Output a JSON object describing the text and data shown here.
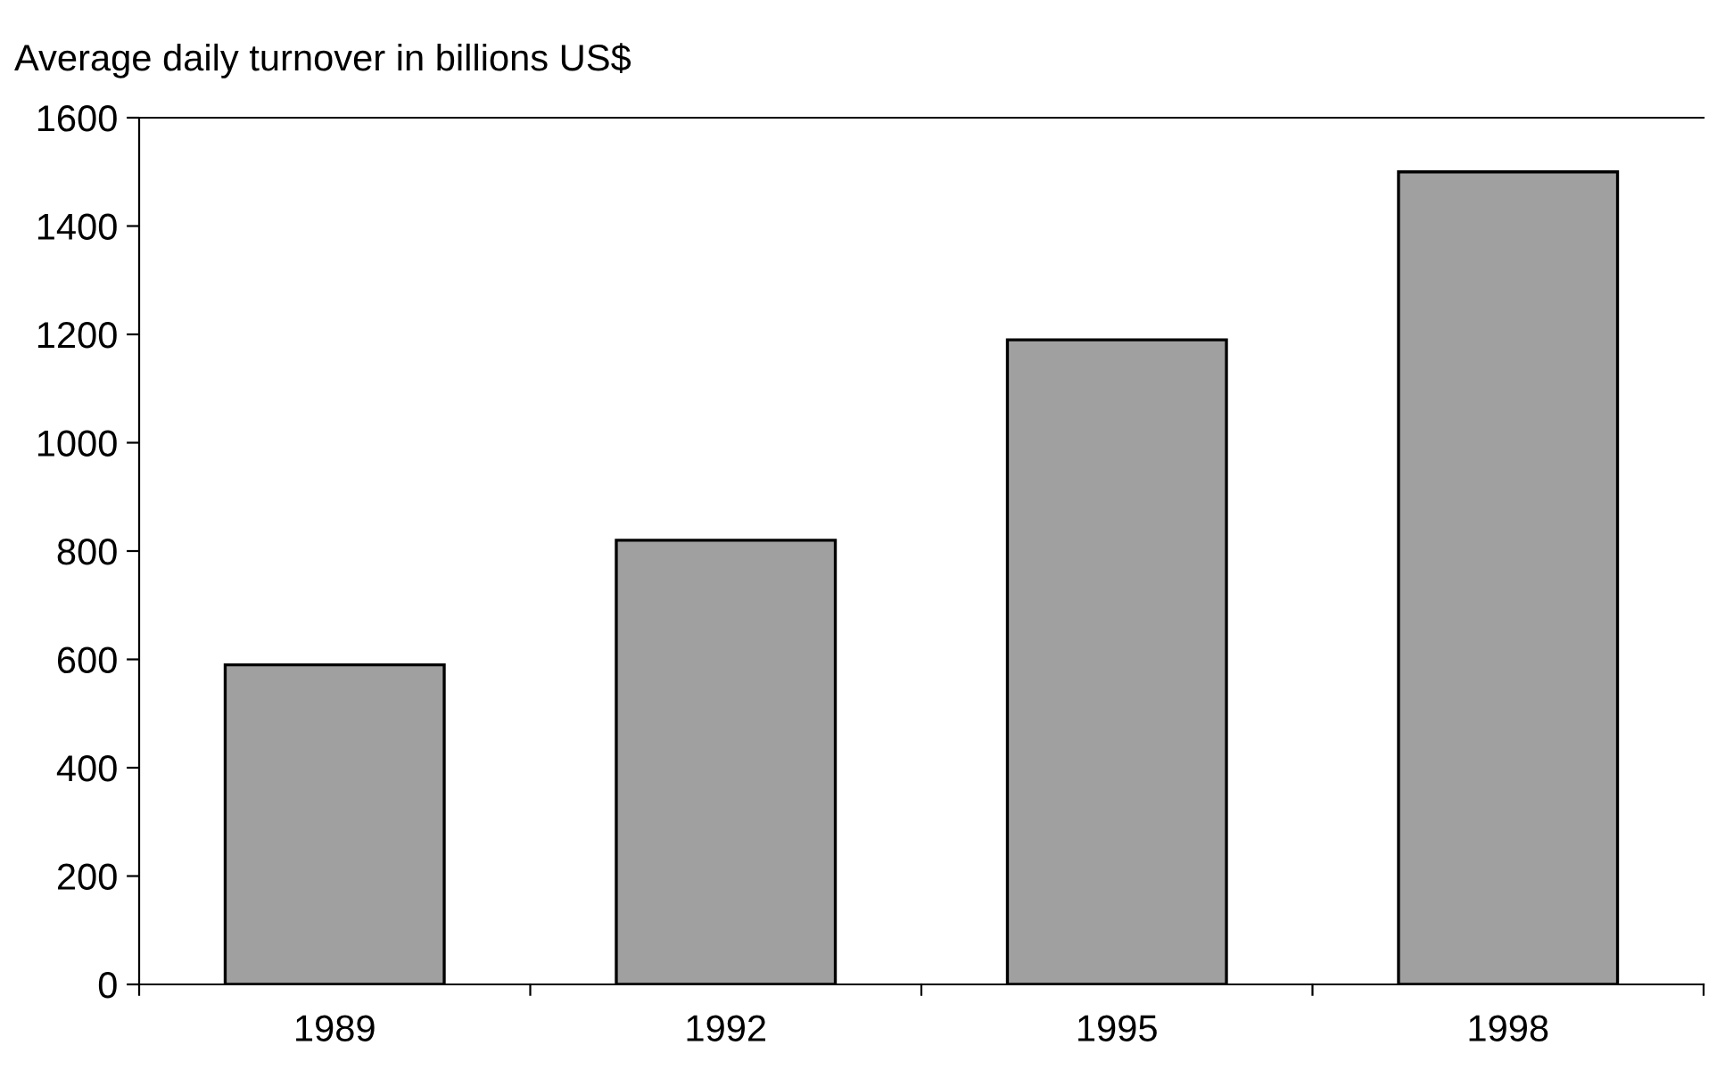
{
  "chart_data": {
    "type": "bar",
    "title": "Average daily turnover in billions US$",
    "categories": [
      "1989",
      "1992",
      "1995",
      "1998"
    ],
    "series": [
      {
        "color": "#a0a0a0",
        "values": [
          590,
          820,
          1190,
          1500
        ]
      }
    ],
    "ylim": [
      0,
      1600
    ],
    "yticks": [
      0,
      200,
      400,
      600,
      800,
      1000,
      1200,
      1400,
      1600
    ],
    "grid": false,
    "legend": false
  }
}
